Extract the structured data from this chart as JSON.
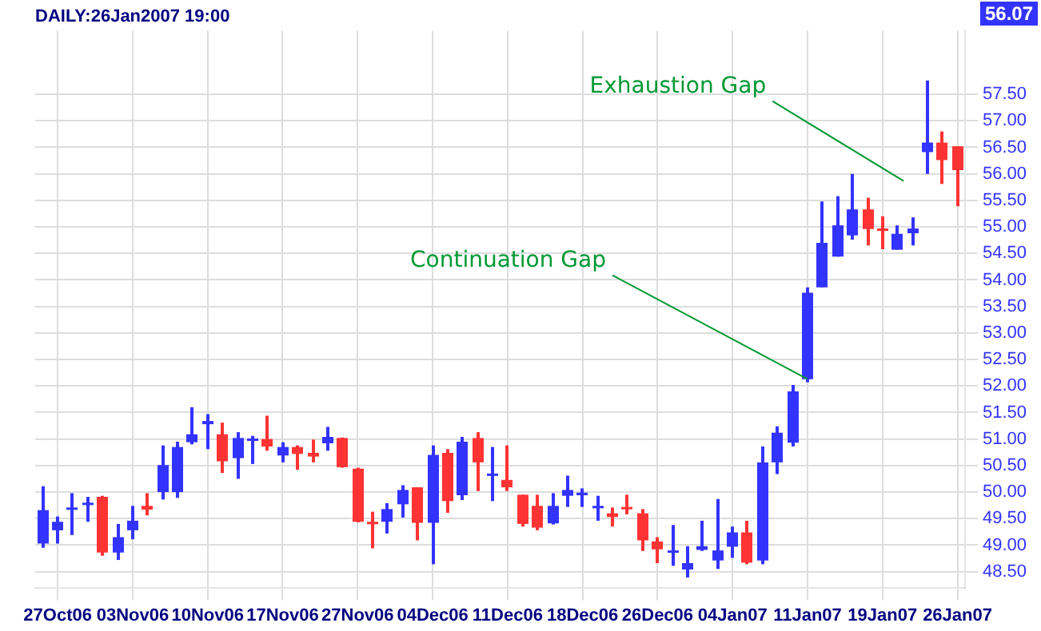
{
  "chart_data": {
    "type": "candlestick",
    "title": "DAILY:26Jan2007 19:00",
    "categories": [
      null,
      "27Oct06",
      null,
      null,
      null,
      null,
      "03Nov06",
      null,
      null,
      null,
      null,
      "10Nov06",
      null,
      null,
      null,
      null,
      "17Nov06",
      null,
      null,
      null,
      null,
      "27Nov06",
      null,
      null,
      null,
      null,
      "04Dec06",
      null,
      null,
      null,
      null,
      "11Dec06",
      null,
      null,
      null,
      null,
      "18Dec06",
      null,
      null,
      null,
      null,
      "26Dec06",
      null,
      null,
      null,
      null,
      "04Jan07",
      null,
      null,
      null,
      null,
      "11Jan07",
      null,
      null,
      null,
      null,
      "19Jan07",
      null,
      null,
      null,
      null,
      "26Jan07"
    ],
    "ohlc": [
      [
        49.03,
        50.11,
        48.95,
        49.66
      ],
      [
        49.28,
        49.54,
        49.03,
        49.44
      ],
      [
        49.69,
        49.98,
        49.19,
        49.71
      ],
      [
        49.78,
        49.91,
        49.44,
        49.8
      ],
      [
        49.91,
        49.93,
        48.8,
        48.86
      ],
      [
        48.86,
        49.4,
        48.72,
        49.15
      ],
      [
        49.28,
        49.74,
        49.11,
        49.46
      ],
      [
        49.74,
        49.98,
        49.56,
        49.67
      ],
      [
        50.0,
        50.88,
        49.86,
        50.51
      ],
      [
        50.0,
        50.95,
        49.89,
        50.85
      ],
      [
        50.94,
        51.6,
        50.9,
        51.09
      ],
      [
        51.28,
        51.47,
        50.81,
        51.34
      ],
      [
        51.09,
        51.31,
        50.36,
        50.58
      ],
      [
        50.64,
        51.13,
        50.25,
        51.02
      ],
      [
        50.99,
        51.06,
        50.53,
        51.01
      ],
      [
        51.0,
        51.44,
        50.78,
        50.86
      ],
      [
        50.69,
        50.94,
        50.56,
        50.85
      ],
      [
        50.85,
        50.88,
        50.42,
        50.72
      ],
      [
        50.74,
        50.99,
        50.56,
        50.67
      ],
      [
        50.92,
        51.23,
        50.78,
        51.04
      ],
      [
        51.02,
        51.03,
        50.46,
        50.47
      ],
      [
        50.44,
        50.46,
        49.43,
        49.44
      ],
      [
        49.44,
        49.63,
        48.94,
        49.42
      ],
      [
        49.44,
        49.79,
        49.22,
        49.68
      ],
      [
        49.77,
        50.13,
        49.52,
        50.04
      ],
      [
        50.09,
        50.09,
        49.09,
        49.42
      ],
      [
        49.42,
        50.88,
        48.64,
        50.7
      ],
      [
        50.74,
        50.81,
        49.61,
        49.83
      ],
      [
        49.94,
        51.04,
        49.85,
        50.95
      ],
      [
        51.02,
        51.13,
        50.02,
        50.56
      ],
      [
        50.31,
        50.85,
        49.83,
        50.35
      ],
      [
        50.23,
        50.88,
        50.02,
        50.09
      ],
      [
        49.95,
        49.95,
        49.35,
        49.4
      ],
      [
        49.74,
        49.95,
        49.28,
        49.33
      ],
      [
        49.41,
        49.98,
        49.39,
        49.74
      ],
      [
        49.93,
        50.31,
        49.72,
        50.04
      ],
      [
        49.94,
        50.07,
        49.72,
        49.99
      ],
      [
        49.73,
        49.93,
        49.46,
        49.74
      ],
      [
        49.6,
        49.71,
        49.35,
        49.53
      ],
      [
        49.72,
        49.95,
        49.58,
        49.7
      ],
      [
        49.6,
        49.68,
        48.89,
        49.09
      ],
      [
        49.07,
        49.15,
        48.66,
        48.92
      ],
      [
        48.89,
        49.38,
        48.61,
        48.9
      ],
      [
        48.54,
        48.98,
        48.39,
        48.66
      ],
      [
        48.91,
        49.46,
        48.89,
        48.98
      ],
      [
        48.71,
        49.87,
        48.55,
        48.9
      ],
      [
        48.97,
        49.35,
        48.76,
        49.24
      ],
      [
        49.24,
        49.46,
        48.64,
        48.67
      ],
      [
        48.71,
        50.86,
        48.64,
        50.56
      ],
      [
        50.56,
        51.24,
        50.34,
        51.12
      ],
      [
        50.93,
        52.02,
        50.86,
        51.9
      ],
      [
        52.13,
        53.86,
        52.07,
        53.76
      ],
      [
        53.86,
        55.48,
        53.86,
        54.7
      ],
      [
        54.44,
        55.58,
        54.44,
        55.03
      ],
      [
        54.84,
        56.0,
        54.76,
        55.33
      ],
      [
        55.33,
        55.55,
        54.65,
        54.96
      ],
      [
        54.97,
        55.2,
        54.58,
        54.95
      ],
      [
        54.57,
        55.03,
        54.57,
        54.87
      ],
      [
        54.88,
        55.18,
        54.65,
        54.97
      ],
      [
        56.41,
        57.76,
        56.0,
        56.59
      ],
      [
        56.59,
        56.8,
        55.81,
        56.26
      ],
      [
        56.52,
        56.52,
        55.39,
        56.07
      ]
    ],
    "colors": [
      "#3333ff",
      "#3333ff",
      "#3333ff",
      "#3333ff",
      "#ff3333",
      "#3333ff",
      "#3333ff",
      "#ff3333",
      "#3333ff",
      "#3333ff",
      "#3333ff",
      "#3333ff",
      "#ff3333",
      "#3333ff",
      "#3333ff",
      "#ff3333",
      "#3333ff",
      "#ff3333",
      "#ff3333",
      "#3333ff",
      "#ff3333",
      "#ff3333",
      "#ff3333",
      "#3333ff",
      "#3333ff",
      "#ff3333",
      "#3333ff",
      "#ff3333",
      "#3333ff",
      "#ff3333",
      "#3333ff",
      "#ff3333",
      "#ff3333",
      "#ff3333",
      "#3333ff",
      "#3333ff",
      "#3333ff",
      "#3333ff",
      "#ff3333",
      "#ff3333",
      "#ff3333",
      "#ff3333",
      "#3333ff",
      "#3333ff",
      "#3333ff",
      "#3333ff",
      "#3333ff",
      "#ff3333",
      "#3333ff",
      "#3333ff",
      "#3333ff",
      "#3333ff",
      "#3333ff",
      "#3333ff",
      "#3333ff",
      "#ff3333",
      "#ff3333",
      "#3333ff",
      "#3333ff",
      "#3333ff",
      "#ff3333",
      "#ff3333"
    ],
    "ylim": [
      48.2,
      58.7
    ],
    "yticks": [
      {
        "value": 48.5,
        "label": "48.50"
      },
      {
        "value": 49,
        "label": "49.00"
      },
      {
        "value": 49.5,
        "label": "49.50"
      },
      {
        "value": 50,
        "label": "50.00"
      },
      {
        "value": 50.5,
        "label": "50.50"
      },
      {
        "value": 51,
        "label": "51.00"
      },
      {
        "value": 51.5,
        "label": "51.50"
      },
      {
        "value": 52,
        "label": "52.00"
      },
      {
        "value": 52.5,
        "label": "52.50"
      },
      {
        "value": 53,
        "label": "53.00"
      },
      {
        "value": 53.5,
        "label": "53.50"
      },
      {
        "value": 54,
        "label": "54.00"
      },
      {
        "value": 54.5,
        "label": "54.50"
      },
      {
        "value": 55,
        "label": "55.00"
      },
      {
        "value": 55.5,
        "label": "55.50"
      },
      {
        "value": 56,
        "label": "56.00"
      },
      {
        "value": 56.5,
        "label": "56.50"
      },
      {
        "value": 57,
        "label": "57.00"
      },
      {
        "value": 57.5,
        "label": "57.50"
      }
    ],
    "grid": true,
    "legend": false,
    "annotations": [
      {
        "text": "Continuation Gap",
        "x": "11Jan07",
        "y": 52.13
      },
      "Exhaustion Gap",
      "56.07"
    ]
  }
}
